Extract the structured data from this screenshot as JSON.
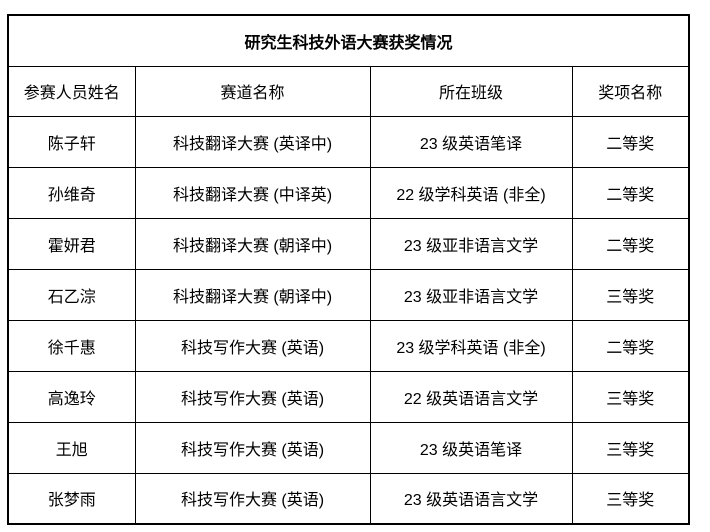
{
  "page": {
    "background_color": "#ffffff",
    "text_color": "#000000",
    "border_color": "#000000"
  },
  "table": {
    "title": "研究生科技外语大赛获奖情况",
    "headers": {
      "name": "参赛人员姓名",
      "track": "赛道名称",
      "class": "所在班级",
      "award": "奖项名称"
    },
    "rows": [
      {
        "name": "陈子轩",
        "track": "科技翻译大赛 (英译中)",
        "class": "23 级英语笔译",
        "award": "二等奖"
      },
      {
        "name": "孙维奇",
        "track": "科技翻译大赛 (中译英)",
        "class": "22 级学科英语 (非全)",
        "award": "二等奖"
      },
      {
        "name": "霍妍君",
        "track": "科技翻译大赛 (朝译中)",
        "class": "23 级亚非语言文学",
        "award": "二等奖"
      },
      {
        "name": "石乙淙",
        "track": "科技翻译大赛 (朝译中)",
        "class": "23 级亚非语言文学",
        "award": "三等奖"
      },
      {
        "name": "徐千惠",
        "track": "科技写作大赛 (英语)",
        "class": "23 级学科英语 (非全)",
        "award": "二等奖"
      },
      {
        "name": "高逸玲",
        "track": "科技写作大赛 (英语)",
        "class": "22 级英语语言文学",
        "award": "三等奖"
      },
      {
        "name": "王旭",
        "track": "科技写作大赛 (英语)",
        "class": "23 级英语笔译",
        "award": "三等奖"
      },
      {
        "name": "张梦雨",
        "track": "科技写作大赛 (英语)",
        "class": "23 级英语语言文学",
        "award": "三等奖"
      }
    ]
  }
}
